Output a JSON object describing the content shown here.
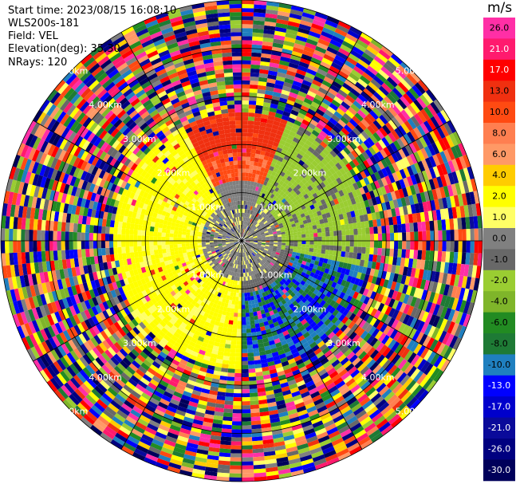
{
  "header": {
    "start_time": "Start time: 2023/08/15 16:08:10",
    "site": "WLS200s-181",
    "field": "Field: VEL",
    "elevation": "Elevation(deg): 35.30",
    "nrays": "NRays: 120"
  },
  "colorbar": {
    "unit": "m/s",
    "ticks": [
      "26.0",
      "21.0",
      "17.0",
      "13.0",
      "10.0",
      "8.0",
      "6.0",
      "4.0",
      "2.0",
      "1.0",
      "0.0",
      "-1.0",
      "-2.0",
      "-4.0",
      "-6.0",
      "-8.0",
      "-10.0",
      "-13.0",
      "-17.0",
      "-21.0",
      "-26.0",
      "-30.0"
    ],
    "colors": [
      "#ff2fa6",
      "#ff1a6e",
      "#ff0000",
      "#f03010",
      "#ff4a12",
      "#ff7f50",
      "#ff9966",
      "#ffcc00",
      "#ffff00",
      "#ffff66",
      "#808080",
      "#686868",
      "#9acd32",
      "#7fb52a",
      "#228b22",
      "#1e7a35",
      "#1f7fbf",
      "#0000ff",
      "#0000cc",
      "#0a0a9a",
      "#000080",
      "#00005a"
    ]
  },
  "chart_data": {
    "type": "ppi",
    "field": "VEL",
    "units": "m/s",
    "n_rays": 120,
    "elevation_deg": 35.3,
    "range_rings_km": [
      {
        "label": "1.00km",
        "positions": [
          "upper-right",
          "lower-left",
          "lower-right",
          "upper-left"
        ]
      },
      {
        "label": "2.00km",
        "positions": [
          "upper-left",
          "upper-right",
          "lower-left",
          "lower-right"
        ]
      },
      {
        "label": "3.00km",
        "positions": [
          "upper-left",
          "upper-right",
          "lower-left",
          "lower-right"
        ]
      },
      {
        "label": "4.00km",
        "positions": [
          "upper-left",
          "upper-right",
          "lower-left",
          "lower-right"
        ]
      },
      {
        "label": "5.00km",
        "positions": [
          "upper-left",
          "upper-right",
          "lower-left",
          "lower-right"
        ]
      }
    ],
    "range_ring_labels": [
      "1.00km",
      "2.00km",
      "3.00km",
      "4.00km",
      "5.00km"
    ],
    "max_range_km": 5.0,
    "velocity_pattern": {
      "south_west_sector_values": [
        "0.0",
        "1.0",
        "2.0"
      ],
      "north_east_sector_values": [
        "-1.0",
        "-2.0",
        "-4.0"
      ],
      "south_east_sector_values": [
        "-8.0",
        "-10.0",
        "-13.0"
      ],
      "outer_range_km": "beyond ~2.5 km noisy / random values"
    }
  }
}
